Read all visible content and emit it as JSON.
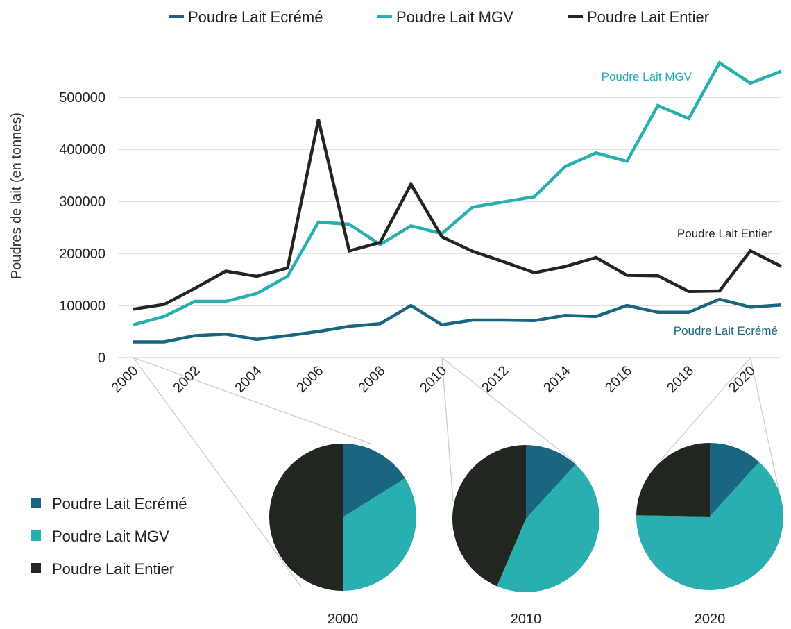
{
  "chart_data": [
    {
      "type": "line",
      "title": "",
      "xlabel": "",
      "ylabel": "Poudres de lait (en tonnes)",
      "x": [
        2000,
        2001,
        2002,
        2003,
        2004,
        2005,
        2006,
        2007,
        2008,
        2009,
        2010,
        2011,
        2012,
        2013,
        2014,
        2015,
        2016,
        2017,
        2018,
        2019,
        2020,
        2021
      ],
      "x_ticks": [
        "2000",
        "2002",
        "2004",
        "2006",
        "2008",
        "2010",
        "2012",
        "2014",
        "2016",
        "2018",
        "2020"
      ],
      "y_ticks": [
        "0",
        "100000",
        "200000",
        "300000",
        "400000",
        "500000"
      ],
      "xlim": [
        2000,
        2021
      ],
      "ylim": [
        0,
        600000
      ],
      "grid": "horizontal",
      "legend": "top",
      "series": [
        {
          "name": "Poudre Lait Ecrémé",
          "color": "#1a6680",
          "values": [
            30000,
            30000,
            42000,
            45000,
            35000,
            42000,
            50000,
            60000,
            65000,
            100000,
            63000,
            72000,
            72000,
            71000,
            81000,
            79000,
            100000,
            87000,
            87000,
            112000,
            97000,
            101000
          ]
        },
        {
          "name": "Poudre Lait MGV",
          "color": "#2aafb0",
          "values": [
            63000,
            79000,
            108000,
            108000,
            123000,
            156000,
            260000,
            256000,
            217000,
            253000,
            238000,
            289000,
            299000,
            309000,
            367000,
            393000,
            377000,
            484000,
            459000,
            566000,
            527000,
            550000
          ]
        },
        {
          "name": "Poudre Lait Entier",
          "color": "#212621",
          "values": [
            93000,
            102000,
            133000,
            166000,
            156000,
            172000,
            457000,
            205000,
            221000,
            333000,
            232000,
            204000,
            184000,
            163000,
            175000,
            192000,
            158000,
            157000,
            127000,
            128000,
            205000,
            175000
          ]
        }
      ],
      "annotations": [
        {
          "text": "Poudre Lait MGV",
          "series": "Poudre Lait MGV"
        },
        {
          "text": "Poudre Lait Entier",
          "series": "Poudre Lait Entier"
        },
        {
          "text": "Poudre Lait Ecrémé",
          "series": "Poudre Lait Ecrémé"
        }
      ]
    },
    {
      "type": "pie",
      "label": "2000",
      "categories": [
        "Poudre Lait Ecrémé",
        "Poudre Lait MGV",
        "Poudre Lait Entier"
      ],
      "values": [
        30000,
        63000,
        93000
      ]
    },
    {
      "type": "pie",
      "label": "2010",
      "categories": [
        "Poudre Lait Ecrémé",
        "Poudre Lait MGV",
        "Poudre Lait Entier"
      ],
      "values": [
        63000,
        238000,
        232000
      ]
    },
    {
      "type": "pie",
      "label": "2020",
      "categories": [
        "Poudre Lait Ecrémé",
        "Poudre Lait MGV",
        "Poudre Lait Entier"
      ],
      "values": [
        97000,
        527000,
        205000
      ]
    }
  ],
  "legend_top": [
    "Poudre Lait Ecrémé",
    "Poudre Lait MGV",
    "Poudre Lait Entier"
  ],
  "legend_bottom": [
    "Poudre Lait Ecrémé",
    "Poudre Lait MGV",
    "Poudre Lait Entier"
  ],
  "colors": {
    "ecreme": "#1a6680",
    "mgv": "#2aafb0",
    "entier": "#212621",
    "grid": "#d8d8d8",
    "connector": "#cccccc"
  }
}
